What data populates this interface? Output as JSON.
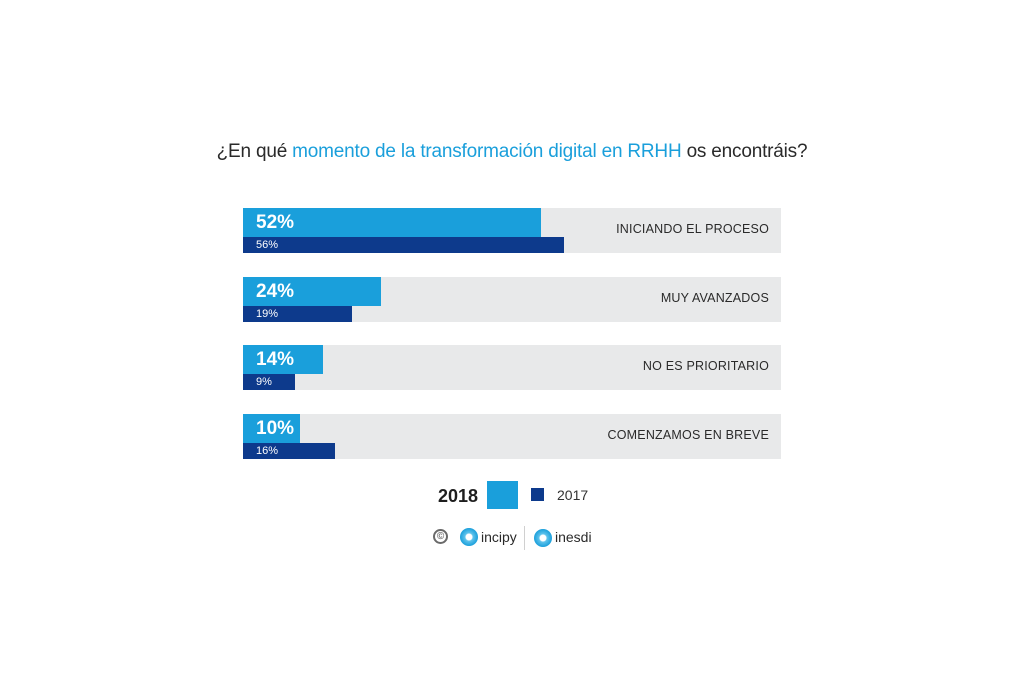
{
  "title": {
    "prefix": "¿En qué ",
    "highlight": "momento de la transformación digital en RRHH",
    "suffix": " os encontráis?"
  },
  "colors": {
    "series_2018": "#1a9fdb",
    "series_2017": "#0d3a8c",
    "track": "#e8e9ea"
  },
  "chart_data": {
    "type": "bar",
    "orientation": "horizontal",
    "categories": [
      "INICIANDO EL PROCESO",
      "MUY AVANZADOS",
      "NO ES PRIORITARIO",
      "COMENZAMOS EN BREVE"
    ],
    "series": [
      {
        "name": "2018",
        "values": [
          52,
          24,
          14,
          10
        ],
        "labels": [
          "52%",
          "24%",
          "14%",
          "10%"
        ]
      },
      {
        "name": "2017",
        "values": [
          56,
          19,
          9,
          16
        ],
        "labels": [
          "56%",
          "19%",
          "9%",
          "16%"
        ]
      }
    ],
    "xlim": [
      0,
      100
    ],
    "grid": false,
    "legend_position": "bottom"
  },
  "legend": {
    "label_2018": "2018",
    "label_2017": "2017"
  },
  "credits": {
    "copyright": "©",
    "brand1": "incipy",
    "brand2": "inesdi"
  }
}
